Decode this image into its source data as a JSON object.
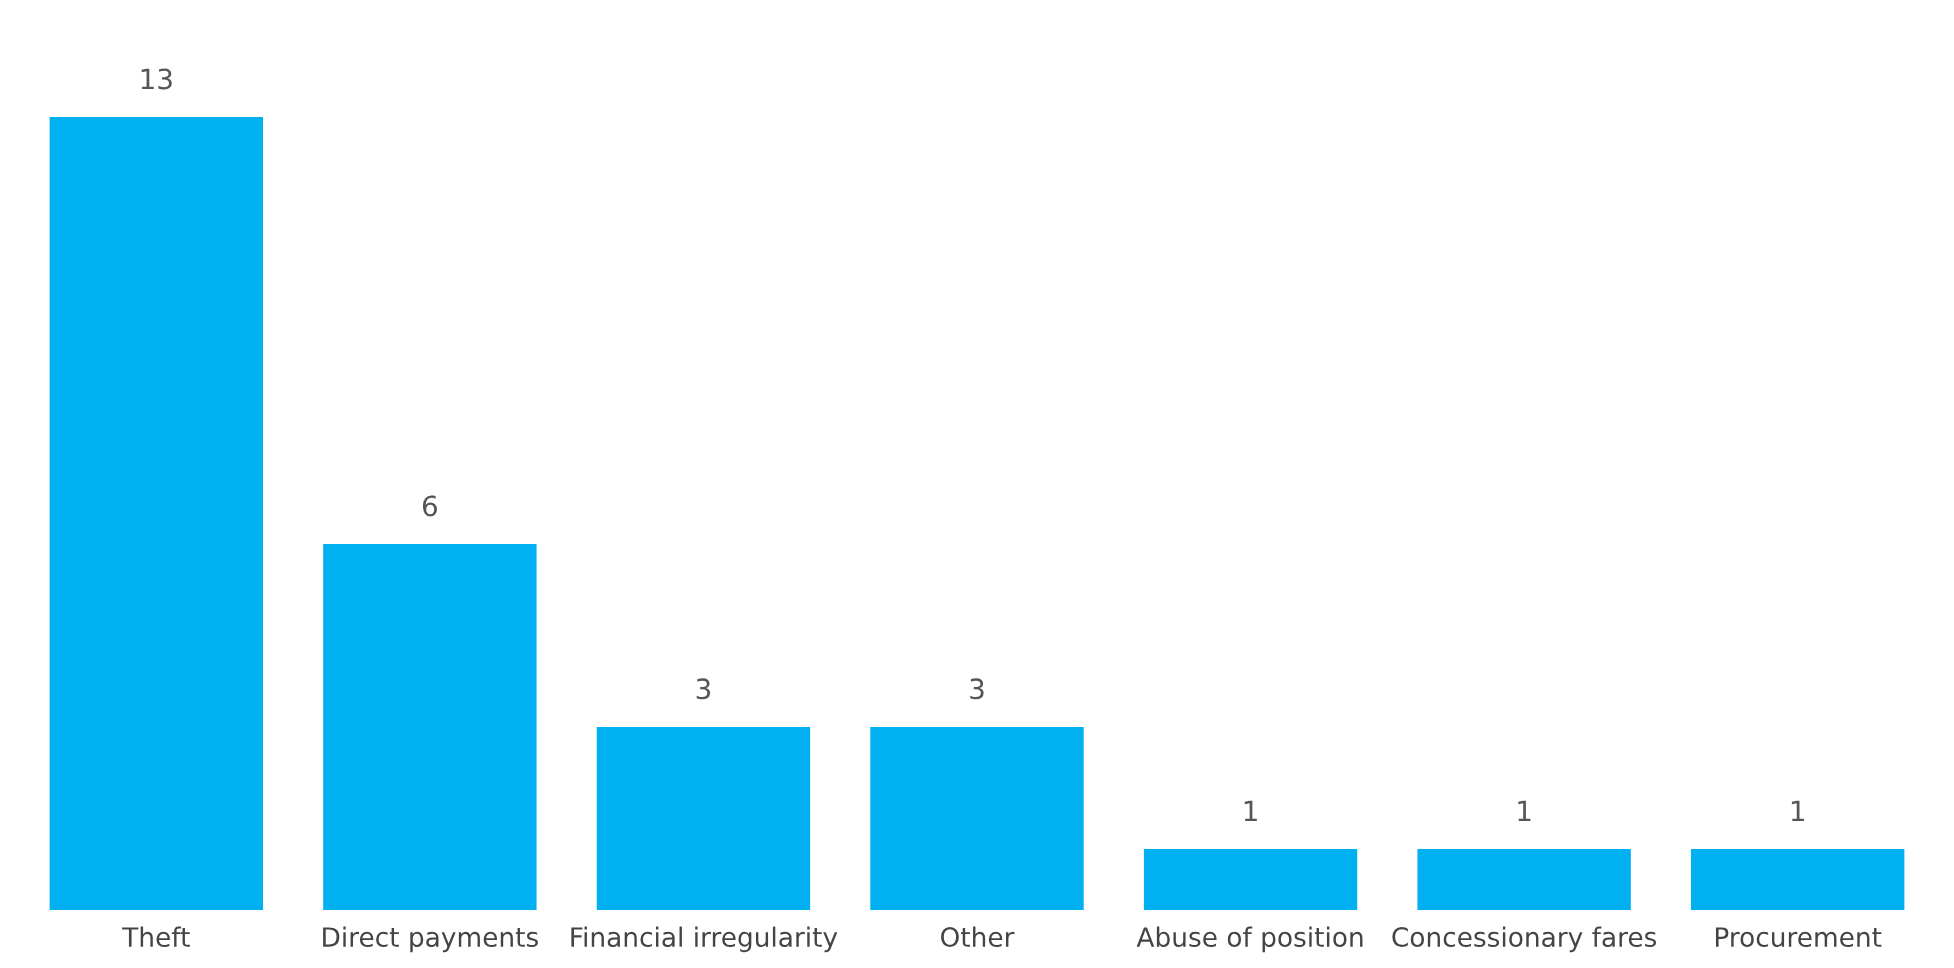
{
  "chart_data": {
    "type": "bar",
    "categories": [
      "Theft",
      "Direct payments",
      "Financial irregularity",
      "Other",
      "Abuse of position",
      "Concessionary fares",
      "Procurement"
    ],
    "values": [
      13,
      6,
      3,
      3,
      1,
      1,
      1
    ],
    "color": "#00b0f0",
    "data_labels": true,
    "grid": false,
    "legend": false
  }
}
